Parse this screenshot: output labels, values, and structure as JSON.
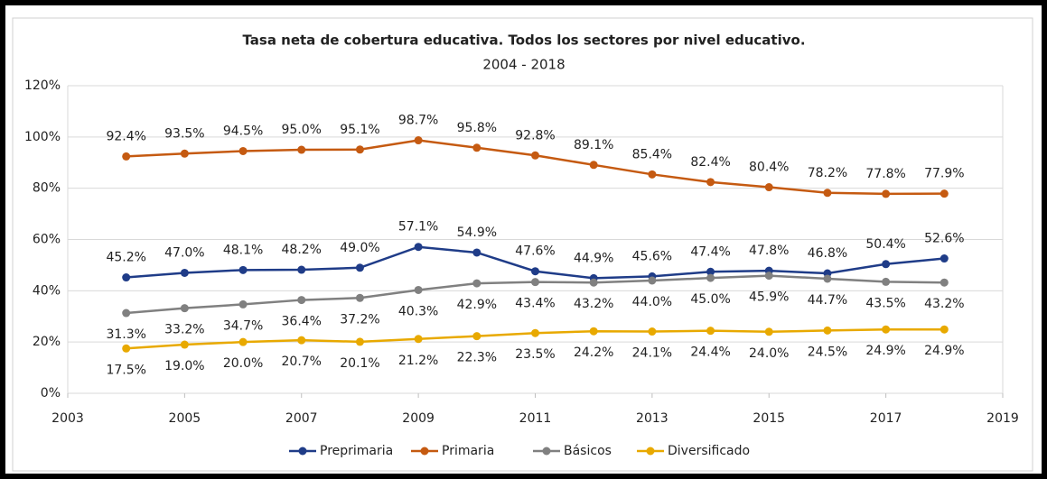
{
  "chart_data": {
    "type": "line",
    "title": "Tasa neta de cobertura educativa. Todos los sectores por nivel educativo.",
    "subtitle": "2004 - 2018",
    "x": [
      2004,
      2005,
      2006,
      2007,
      2008,
      2009,
      2010,
      2011,
      2012,
      2013,
      2014,
      2015,
      2016,
      2017,
      2018
    ],
    "xlim": [
      2003,
      2019
    ],
    "xticks": [
      2003,
      2005,
      2007,
      2009,
      2011,
      2013,
      2015,
      2017,
      2019
    ],
    "ylim": [
      0,
      120
    ],
    "yticks": [
      {
        "value": 0,
        "label": "0%"
      },
      {
        "value": 20,
        "label": "20%"
      },
      {
        "value": 40,
        "label": "40%"
      },
      {
        "value": 60,
        "label": "60%"
      },
      {
        "value": 80,
        "label": "80%"
      },
      {
        "value": 100,
        "label": "100%"
      },
      {
        "value": 120,
        "label": "120%"
      }
    ],
    "grid": true,
    "legend": "bottom",
    "series": [
      {
        "name": "Preprimaria",
        "color": "#1f3c88",
        "values": [
          45.2,
          47.0,
          48.1,
          48.2,
          49.0,
          57.1,
          54.9,
          47.6,
          44.9,
          45.6,
          47.4,
          47.8,
          46.8,
          50.4,
          52.6
        ],
        "value_labels": [
          "45.2%",
          "47.0%",
          "48.1%",
          "48.2%",
          "49.0%",
          "57.1%",
          "54.9%",
          "47.6%",
          "44.9%",
          "45.6%",
          "47.4%",
          "47.8%",
          "46.8%",
          "50.4%",
          "52.6%"
        ]
      },
      {
        "name": "Primaria",
        "color": "#c55a11",
        "values": [
          92.4,
          93.5,
          94.5,
          95.0,
          95.1,
          98.7,
          95.8,
          92.8,
          89.1,
          85.4,
          82.4,
          80.4,
          78.2,
          77.8,
          77.9
        ],
        "value_labels": [
          "92.4%",
          "93.5%",
          "94.5%",
          "95.0%",
          "95.1%",
          "98.7%",
          "95.8%",
          "92.8%",
          "89.1%",
          "85.4%",
          "82.4%",
          "80.4%",
          "78.2%",
          "77.8%",
          "77.9%"
        ]
      },
      {
        "name": "Básicos",
        "color": "#808080",
        "values": [
          31.3,
          33.2,
          34.7,
          36.4,
          37.2,
          40.3,
          42.9,
          43.4,
          43.2,
          44.0,
          45.0,
          45.9,
          44.7,
          43.5,
          43.2
        ],
        "value_labels": [
          "31.3%",
          "33.2%",
          "34.7%",
          "36.4%",
          "37.2%",
          "40.3%",
          "42.9%",
          "43.4%",
          "43.2%",
          "44.0%",
          "45.0%",
          "45.9%",
          "44.7%",
          "43.5%",
          "43.2%"
        ]
      },
      {
        "name": "Diversificado",
        "color": "#e8a900",
        "values": [
          17.5,
          19.0,
          20.0,
          20.7,
          20.1,
          21.2,
          22.3,
          23.5,
          24.2,
          24.1,
          24.4,
          24.0,
          24.5,
          24.9,
          24.9
        ],
        "value_labels": [
          "17.5%",
          "19.0%",
          "20.0%",
          "20.7%",
          "20.1%",
          "21.2%",
          "22.3%",
          "23.5%",
          "24.2%",
          "24.1%",
          "24.4%",
          "24.0%",
          "24.5%",
          "24.9%",
          "24.9%"
        ]
      }
    ]
  }
}
